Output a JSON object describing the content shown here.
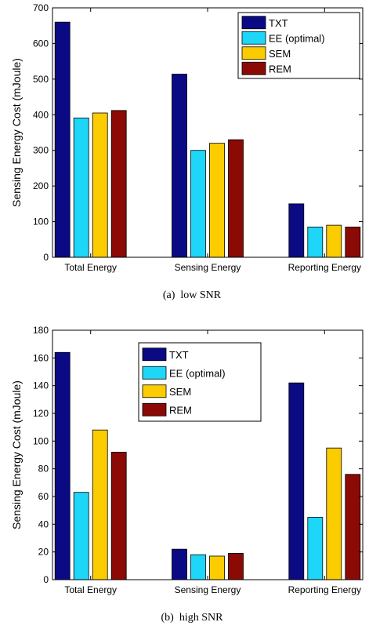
{
  "chart_data": [
    {
      "type": "bar",
      "caption": "(a)  low SNR",
      "categories": [
        "Total Energy",
        "Sensing Energy",
        "Reporting Energy"
      ],
      "series": [
        {
          "name": "TXT",
          "values": [
            660,
            514,
            150
          ]
        },
        {
          "name": "EE (optimal)",
          "values": [
            391,
            300,
            85
          ]
        },
        {
          "name": "SEM",
          "values": [
            405,
            320,
            90
          ]
        },
        {
          "name": "REM",
          "values": [
            412,
            330,
            85
          ]
        }
      ],
      "ylabel": "Sensing Energy Cost (mJoule)",
      "ylim": [
        0,
        700
      ],
      "yticks": [
        0,
        100,
        200,
        300,
        400,
        500,
        600,
        700
      ],
      "legend": "top-right",
      "grid": false
    },
    {
      "type": "bar",
      "caption": "(b)  high SNR",
      "categories": [
        "Total Energy",
        "Sensing Energy",
        "Reporting Energy"
      ],
      "series": [
        {
          "name": "TXT",
          "values": [
            164,
            22,
            142
          ]
        },
        {
          "name": "EE (optimal)",
          "values": [
            63,
            18,
            45
          ]
        },
        {
          "name": "SEM",
          "values": [
            108,
            17,
            95
          ]
        },
        {
          "name": "REM",
          "values": [
            92,
            19,
            76
          ]
        }
      ],
      "ylabel": "Sensing Energy Cost (mJoule)",
      "ylim": [
        0,
        180
      ],
      "yticks": [
        0,
        20,
        40,
        60,
        80,
        100,
        120,
        140,
        160,
        180
      ],
      "legend": "top-center",
      "grid": false
    }
  ],
  "colors": {
    "TXT": "#0a0a85",
    "EE (optimal)": "#1ed6f7",
    "SEM": "#fbcc00",
    "REM": "#8b0a05"
  }
}
